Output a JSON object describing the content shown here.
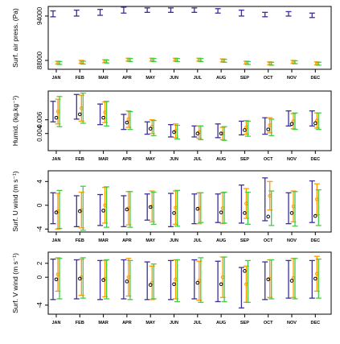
{
  "colors": {
    "blue": "#3a2f9a",
    "green": "#44cc44",
    "orange": "#ff9900",
    "black": "#000000"
  },
  "months": [
    "JAN",
    "FEB",
    "MAR",
    "APR",
    "MAY",
    "JUN",
    "JUL",
    "AUG",
    "SEP",
    "OCT",
    "NOV",
    "DEC"
  ],
  "chart_data": [
    {
      "type": "scatter",
      "ylabel": "Surf. air press. (Pa)",
      "ylim": [
        86800,
        95300
      ],
      "yticks": [
        88000,
        94000
      ],
      "ytick_labels": [
        "88000",
        "94000"
      ],
      "series": [
        {
          "color": "blue",
          "marker": "none",
          "values": [
            94300,
            94400,
            94500,
            94800,
            94800,
            94800,
            94800,
            94700,
            94400,
            94200,
            94300,
            94100
          ],
          "errors": [
            400,
            400,
            400,
            400,
            300,
            300,
            300,
            300,
            400,
            300,
            300,
            300
          ]
        },
        {
          "color": "orange",
          "marker": "circle",
          "values": [
            87700,
            87800,
            87900,
            88100,
            88100,
            88100,
            88100,
            88000,
            87700,
            87600,
            87800,
            87600
          ],
          "errors": [
            200,
            200,
            200,
            200,
            200,
            200,
            200,
            200,
            200,
            200,
            200,
            200
          ]
        },
        {
          "color": "green",
          "marker": "none",
          "values": [
            87650,
            87700,
            87850,
            88050,
            88050,
            88050,
            88050,
            87950,
            87650,
            87550,
            87750,
            87550
          ],
          "errors": [
            200,
            200,
            200,
            200,
            200,
            200,
            200,
            200,
            200,
            200,
            200,
            200
          ]
        }
      ]
    },
    {
      "type": "scatter",
      "ylabel": "Humid. (kg.kg⁻¹)",
      "ylim": [
        0.0015,
        0.0102
      ],
      "yticks": [
        0.004,
        0.006
      ],
      "ytick_labels": [
        "0.004",
        "0.006"
      ],
      "series": [
        {
          "color": "blue",
          "marker": "none",
          "values": [
            0.0072,
            0.0079,
            0.0068,
            0.0057,
            0.0048,
            0.0044,
            0.0043,
            0.0044,
            0.0048,
            0.0051,
            0.0062,
            0.0062
          ],
          "errors": [
            0.0015,
            0.0018,
            0.0015,
            0.0011,
            0.0009,
            0.0009,
            0.0008,
            0.001,
            0.001,
            0.0012,
            0.0011,
            0.0011
          ]
        },
        {
          "color": "orange",
          "marker": "circle",
          "values": [
            0.0072,
            0.0077,
            0.0071,
            0.0061,
            0.005,
            0.0044,
            0.0042,
            0.004,
            0.0049,
            0.0052,
            0.0058,
            0.0059
          ],
          "errors": [
            0.0018,
            0.0019,
            0.0015,
            0.0012,
            0.001,
            0.001,
            0.0009,
            0.0009,
            0.001,
            0.0011,
            0.0011,
            0.0011
          ]
        },
        {
          "color": "black",
          "marker": "circle",
          "values": [
            0.0063,
            0.0068,
            0.0063,
            0.0056,
            0.0047,
            0.0042,
            0.004,
            0.004,
            0.0045,
            0.0046,
            0.0054,
            0.0055
          ],
          "errors": [
            0,
            0,
            0,
            0,
            0,
            0,
            0,
            0,
            0,
            0,
            0,
            0
          ]
        },
        {
          "color": "green",
          "marker": "none",
          "values": [
            0.0072,
            0.0077,
            0.0069,
            0.0059,
            0.0048,
            0.0042,
            0.0041,
            0.004,
            0.0047,
            0.0049,
            0.0058,
            0.0058
          ],
          "errors": [
            0.0022,
            0.0022,
            0.0018,
            0.0013,
            0.0011,
            0.001,
            0.001,
            0.001,
            0.0011,
            0.0012,
            0.0012,
            0.0012
          ]
        }
      ]
    },
    {
      "type": "scatter",
      "ylabel": "Surf. U wind (m s⁻¹)",
      "ylim": [
        -4.5,
        5.8
      ],
      "yticks": [
        -4,
        0,
        4
      ],
      "ytick_labels": [
        "-4",
        "0",
        "4"
      ],
      "series": [
        {
          "color": "blue",
          "marker": "none",
          "values": [
            -0.5,
            -1.0,
            -0.8,
            -1.0,
            -0.3,
            -0.8,
            -0.6,
            -0.5,
            0.2,
            1.0,
            -0.5,
            0.6
          ],
          "errors": [
            2.6,
            2.6,
            2.6,
            2.6,
            2.2,
            2.8,
            2.5,
            2.4,
            3.2,
            3.6,
            2.6,
            3.5
          ]
        },
        {
          "color": "orange",
          "marker": "circle",
          "values": [
            -1.0,
            -0.8,
            0.0,
            -0.5,
            -0.2,
            -0.4,
            -0.5,
            -0.5,
            0.3,
            1.6,
            -0.2,
            1.0
          ],
          "errors": [
            3.0,
            3.0,
            3.0,
            2.8,
            2.6,
            2.8,
            2.6,
            2.6,
            2.5,
            2.4,
            2.6,
            2.6
          ]
        },
        {
          "color": "black",
          "marker": "circle",
          "values": [
            -1.2,
            -1.0,
            -0.9,
            -0.7,
            -0.3,
            -1.3,
            -0.6,
            -1.2,
            -1.3,
            -1.9,
            -1.3,
            -1.8
          ],
          "errors": [
            0,
            0,
            0,
            0,
            0,
            0,
            0,
            0,
            0,
            0,
            0,
            0
          ]
        },
        {
          "color": "green",
          "marker": "none",
          "values": [
            -0.7,
            -0.5,
            -0.3,
            -0.7,
            -0.5,
            -0.5,
            -0.4,
            -0.4,
            -0.5,
            -0.5,
            -0.6,
            -0.4
          ],
          "errors": [
            3.2,
            3.7,
            3.4,
            3.0,
            2.7,
            3.0,
            2.5,
            2.6,
            2.7,
            2.9,
            2.9,
            3.0
          ]
        }
      ]
    },
    {
      "type": "scatter",
      "ylabel": "Surf. V wind (m s⁻¹)",
      "ylim": [
        -5.3,
        3.6
      ],
      "yticks": [
        -4,
        0,
        2
      ],
      "ytick_labels": [
        "-4",
        "0",
        "2"
      ],
      "series": [
        {
          "color": "blue",
          "marker": "none",
          "values": [
            -0.3,
            -0.3,
            -0.4,
            -0.3,
            -0.5,
            -0.4,
            -0.3,
            -0.6,
            -1.5,
            -0.5,
            -0.3,
            -0.3
          ],
          "errors": [
            2.9,
            2.8,
            2.8,
            2.8,
            2.7,
            2.8,
            2.8,
            2.9,
            2.9,
            2.7,
            2.7,
            2.7
          ]
        },
        {
          "color": "orange",
          "marker": "circle",
          "values": [
            0.4,
            0.0,
            -0.2,
            0.0,
            -0.8,
            -0.3,
            -0.5,
            0.0,
            -1.0,
            -0.2,
            -0.1,
            0.5
          ],
          "errors": [
            2.4,
            2.6,
            2.6,
            2.7,
            2.4,
            2.8,
            2.8,
            2.9,
            2.6,
            2.7,
            2.8,
            2.5
          ]
        },
        {
          "color": "black",
          "marker": "circle",
          "values": [
            -0.3,
            -0.2,
            -0.4,
            -0.6,
            -1.1,
            -1.0,
            -0.8,
            -1.0,
            0.9,
            -0.3,
            -0.5,
            -0.2
          ],
          "errors": [
            0,
            0,
            0,
            0,
            0,
            0,
            0,
            0,
            0,
            0,
            0,
            0
          ]
        },
        {
          "color": "green",
          "marker": "none",
          "values": [
            -0.2,
            -0.1,
            -0.3,
            -0.4,
            -0.6,
            -0.5,
            -0.4,
            -0.3,
            -0.6,
            -0.3,
            -0.2,
            -0.2
          ],
          "errors": [
            2.9,
            2.9,
            2.8,
            2.8,
            2.5,
            3.0,
            3.2,
            3.2,
            3.0,
            2.8,
            2.9,
            2.8
          ]
        }
      ]
    }
  ]
}
